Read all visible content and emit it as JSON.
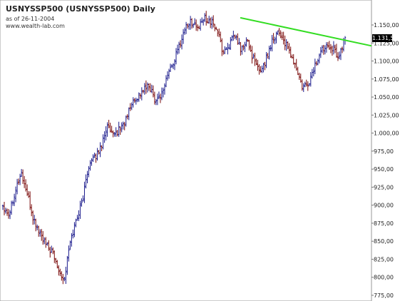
{
  "header": {
    "title": "USNYSSP500 (USNYSSP500) Daily",
    "as_of": "as of 26-11-2004",
    "source_url": "www.wealth-lab.com"
  },
  "price_badge": "1.131,50",
  "colors": {
    "background": "#ffffff",
    "frame": "#9a9a9a",
    "up_bar": "#1a1a8c",
    "down_bar": "#7a0a0a",
    "trendline": "#33dd22",
    "text": "#222222"
  },
  "chart_data": {
    "type": "line",
    "title": "USNYSSP500 (USNYSSP500) Daily",
    "xlabel": "",
    "ylabel": "",
    "ylim": [
      775,
      1160
    ],
    "yticks": [
      775,
      800,
      825,
      850,
      875,
      900,
      925,
      950,
      975,
      1000,
      1025,
      1050,
      1075,
      1100,
      1125,
      1150
    ],
    "ytick_labels": [
      "775,00",
      "800,00",
      "825,00",
      "850,00",
      "875,00",
      "900,00",
      "925,00",
      "950,00",
      "975,00",
      "1.000,00",
      "1.025,00",
      "1.050,00",
      "1.075,00",
      "1.100,00",
      "1.125,00",
      "1.150,00"
    ],
    "bar_style": "OHLC",
    "series": [
      {
        "values": [
          900,
          888,
          920,
          945,
          915,
          880,
          862,
          845,
          835,
          815,
          795,
          848,
          880,
          905,
          955,
          965,
          980,
          1010,
          995,
          1005,
          1015,
          1040,
          1050,
          1060,
          1065,
          1045,
          1055,
          1082,
          1100,
          1125,
          1150,
          1155,
          1145,
          1160,
          1155,
          1145,
          1112,
          1122,
          1135,
          1115,
          1128,
          1102,
          1085,
          1100,
          1128,
          1142,
          1128,
          1110,
          1090,
          1062,
          1068,
          1092,
          1112,
          1125,
          1118,
          1105,
          1132
        ]
      }
    ],
    "trendline": {
      "from": 1160,
      "to": 1121,
      "color": "#33dd22"
    }
  }
}
